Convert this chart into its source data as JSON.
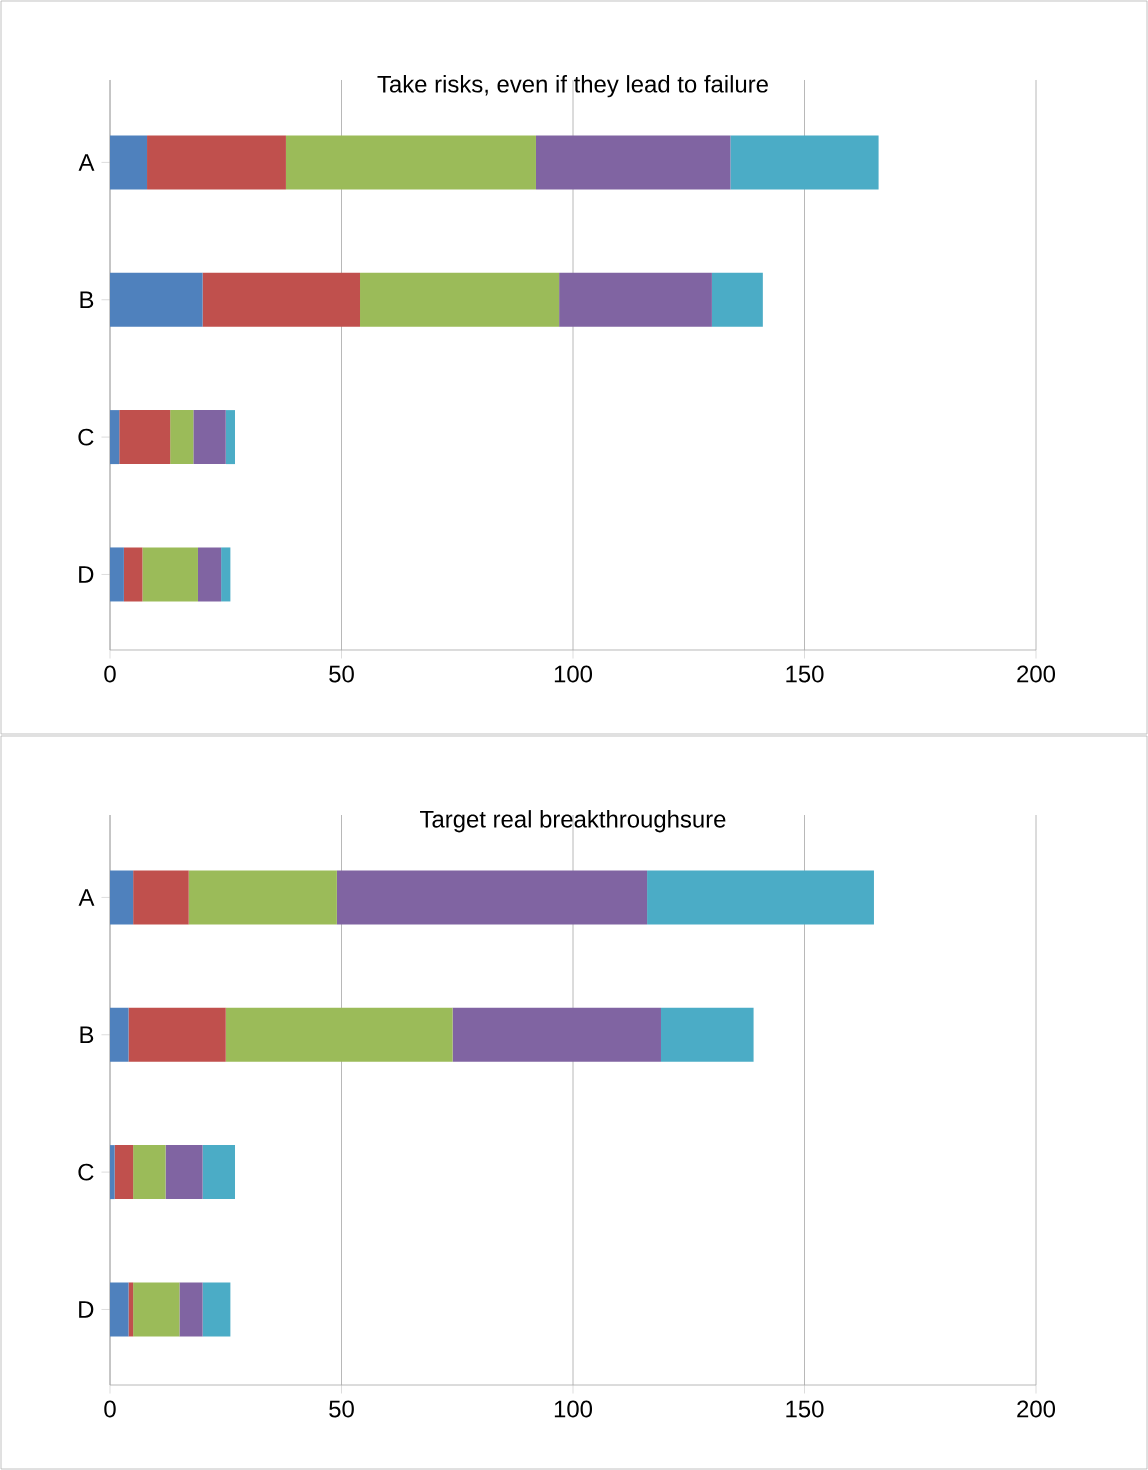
{
  "chart_data": [
    {
      "type": "bar",
      "title": "Take risks, even if they lead to failure",
      "orientation": "horizontal",
      "stacked": true,
      "categories": [
        "A",
        "B",
        "C",
        "D"
      ],
      "xlim": [
        0,
        200
      ],
      "xticks": [
        0,
        50,
        100,
        150,
        200
      ],
      "grid": "x",
      "series": [
        {
          "color": "#4f81bd",
          "values": [
            8,
            20,
            2,
            3
          ]
        },
        {
          "color": "#c0504d",
          "values": [
            30,
            34,
            11,
            4
          ]
        },
        {
          "color": "#9bbb59",
          "values": [
            54,
            43,
            5,
            12
          ]
        },
        {
          "color": "#8064a2",
          "values": [
            42,
            33,
            7,
            5
          ]
        },
        {
          "color": "#4bacc6",
          "values": [
            32,
            11,
            2,
            2
          ]
        }
      ]
    },
    {
      "type": "bar",
      "title": "Target real breakthroughsure",
      "orientation": "horizontal",
      "stacked": true,
      "categories": [
        "A",
        "B",
        "C",
        "D"
      ],
      "xlim": [
        0,
        200
      ],
      "xticks": [
        0,
        50,
        100,
        150,
        200
      ],
      "grid": "x",
      "series": [
        {
          "color": "#4f81bd",
          "values": [
            5,
            4,
            1,
            4
          ]
        },
        {
          "color": "#c0504d",
          "values": [
            12,
            21,
            4,
            1
          ]
        },
        {
          "color": "#9bbb59",
          "values": [
            32,
            49,
            7,
            10
          ]
        },
        {
          "color": "#8064a2",
          "values": [
            67,
            45,
            8,
            5
          ]
        },
        {
          "color": "#4bacc6",
          "values": [
            49,
            20,
            7,
            6
          ]
        }
      ]
    }
  ]
}
